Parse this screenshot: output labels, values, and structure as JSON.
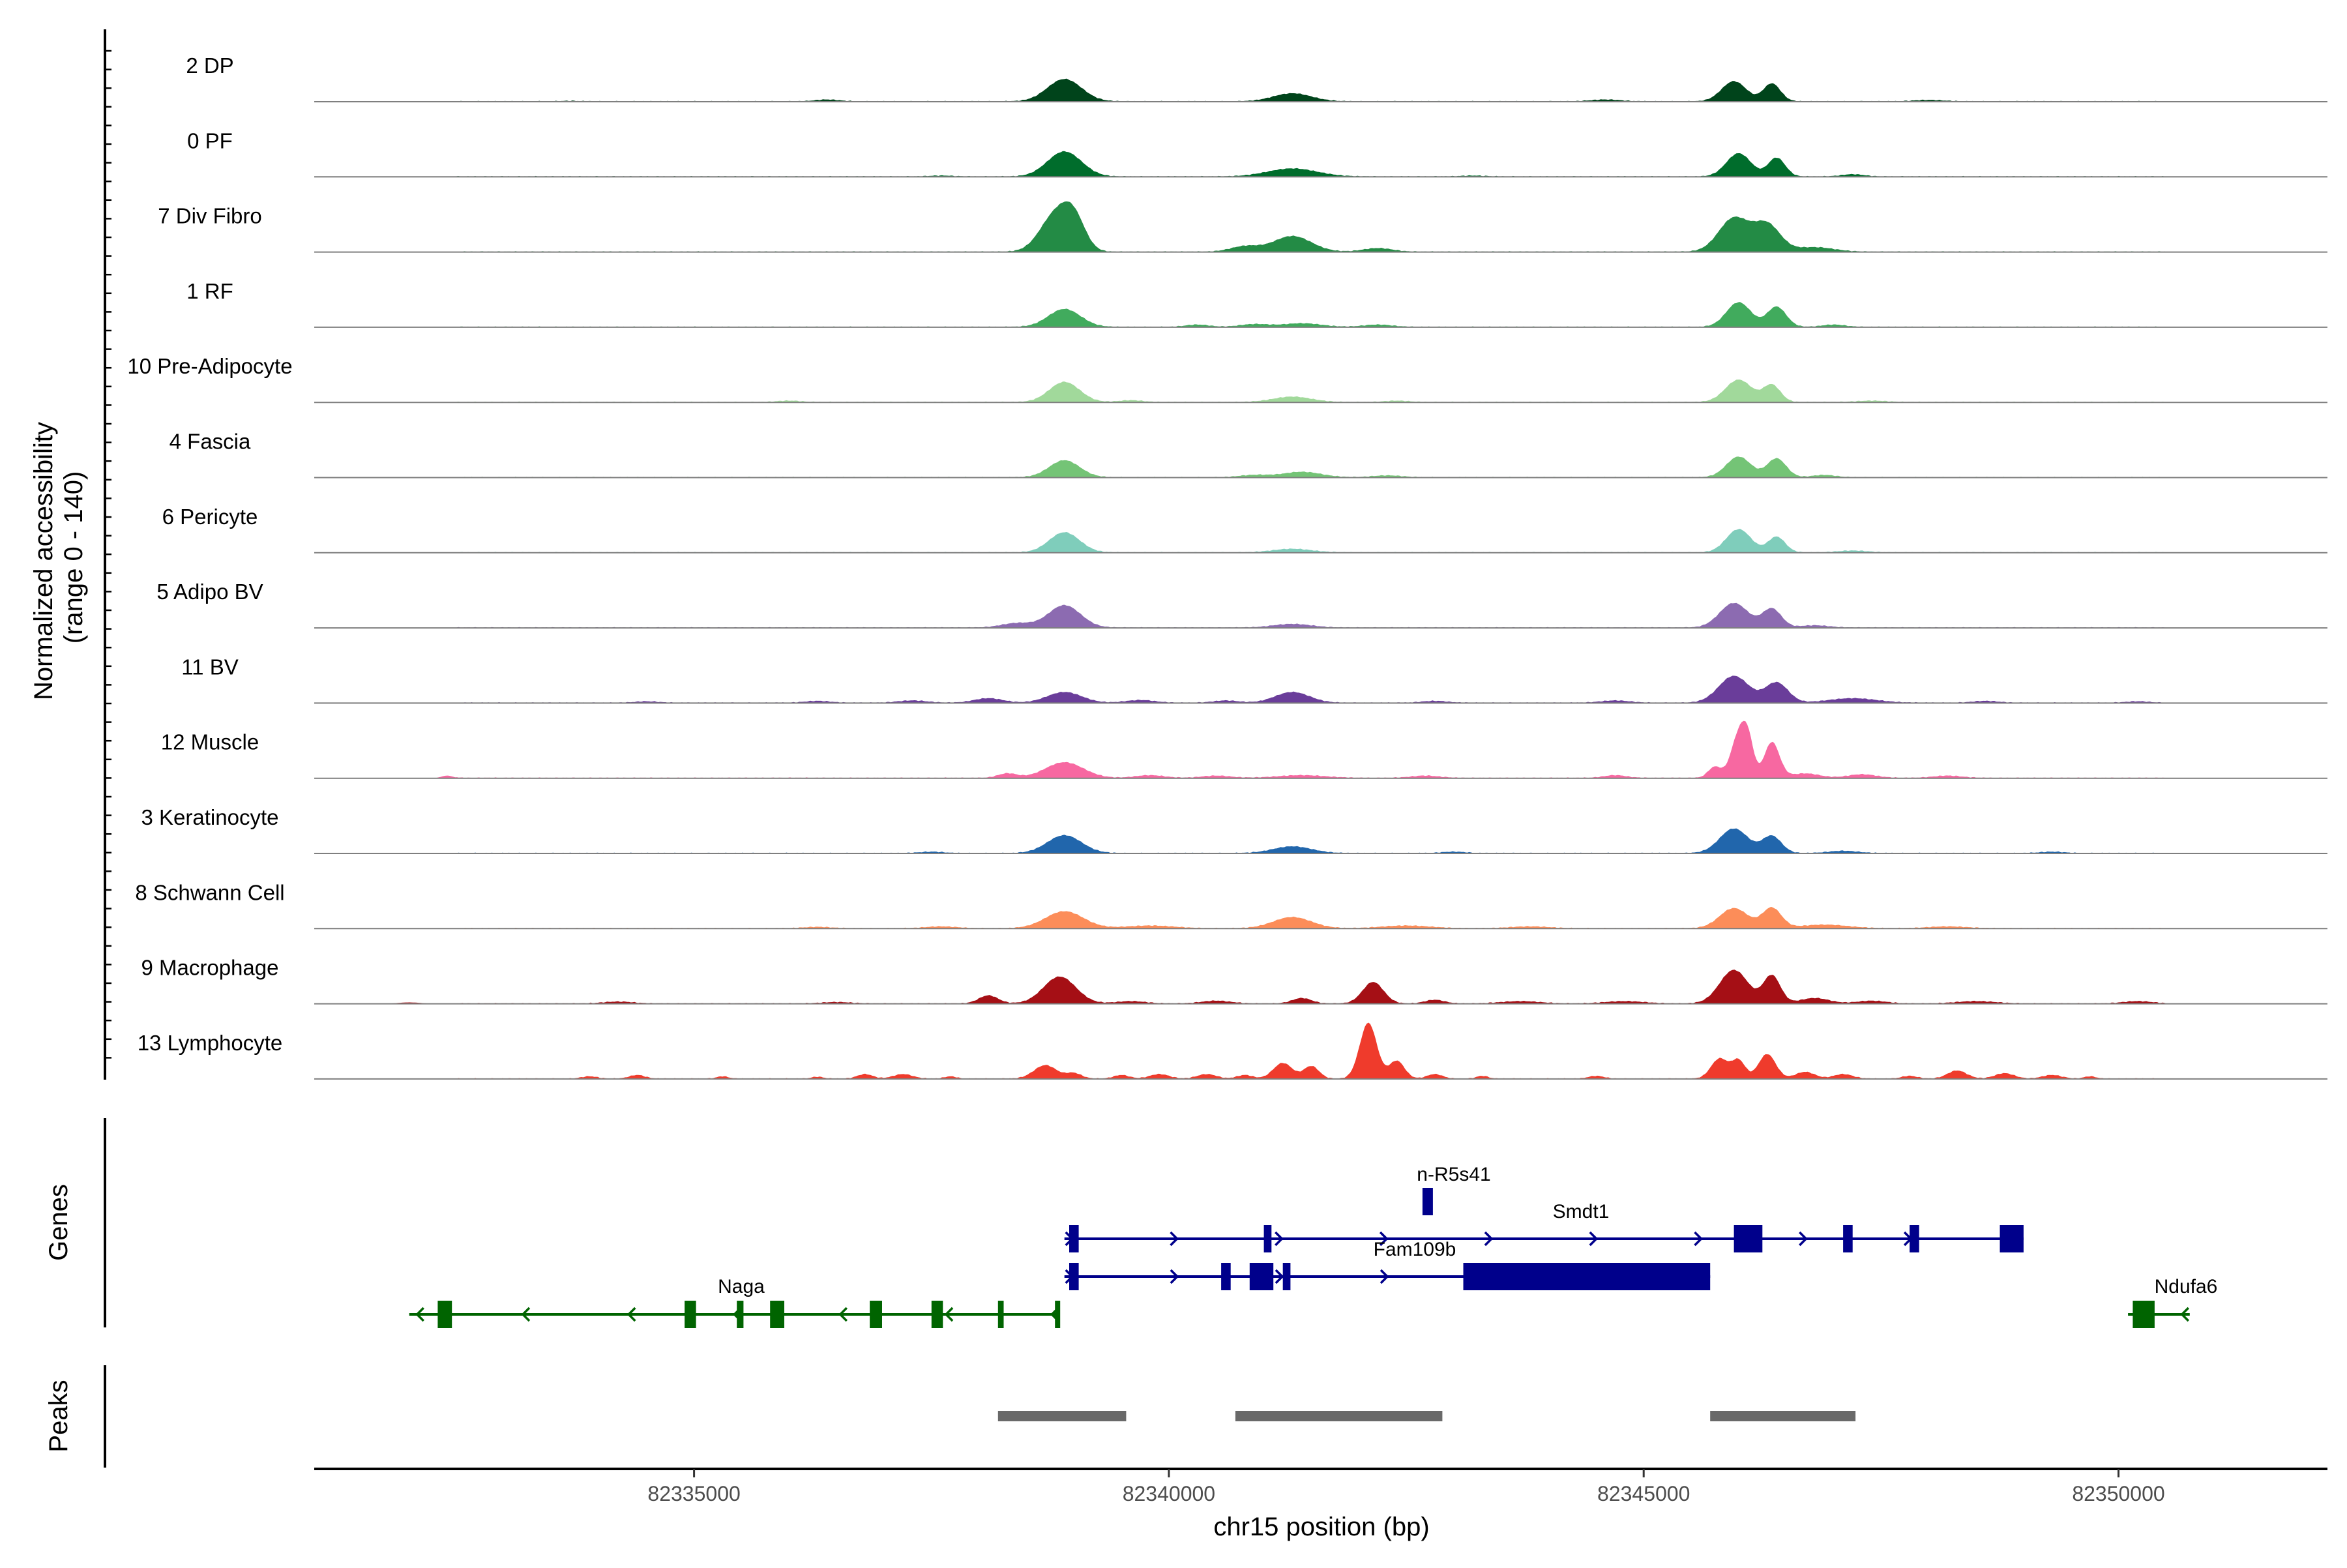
{
  "chart_data": {
    "type": "area",
    "title": "",
    "xlabel": "chr15 position (bp)",
    "ylabel": "Normalized accessibility\n(range 0 - 140)",
    "ylabel_lines": [
      "Normalized accessibility",
      "(range 0 - 140)"
    ],
    "xlim": [
      82331000,
      82352200
    ],
    "ylim": [
      0,
      140
    ],
    "x_ticks": [
      82335000,
      82340000,
      82345000,
      82350000
    ],
    "x_tick_labels": [
      "82335000",
      "82340000",
      "82345000",
      "82350000"
    ],
    "panel_labels": {
      "genes": "Genes",
      "peaks": "Peaks"
    },
    "background_level": 2,
    "series": [
      {
        "name": "2 DP",
        "color": "#00441b",
        "peaks": [
          [
            82333700,
            1,
            90
          ],
          [
            82336400,
            4,
            120
          ],
          [
            82338900,
            50,
            180
          ],
          [
            82341300,
            18,
            200
          ],
          [
            82344600,
            4,
            150
          ],
          [
            82345950,
            45,
            130
          ],
          [
            82346350,
            40,
            90
          ],
          [
            82348000,
            3,
            150
          ]
        ]
      },
      {
        "name": "0 PF",
        "color": "#006d2c",
        "peaks": [
          [
            82337600,
            2,
            120
          ],
          [
            82338900,
            56,
            180
          ],
          [
            82341300,
            18,
            260
          ],
          [
            82343200,
            2,
            120
          ],
          [
            82346000,
            52,
            130
          ],
          [
            82346400,
            42,
            90
          ],
          [
            82347200,
            5,
            120
          ]
        ]
      },
      {
        "name": "7 Div Fibro",
        "color": "#238b45",
        "peaks": [
          [
            82338800,
            80,
            160
          ],
          [
            82339000,
            65,
            120
          ],
          [
            82340800,
            12,
            150
          ],
          [
            82341300,
            35,
            200
          ],
          [
            82342200,
            8,
            150
          ],
          [
            82345950,
            75,
            160
          ],
          [
            82346300,
            60,
            140
          ],
          [
            82346800,
            10,
            200
          ]
        ]
      },
      {
        "name": "1 RF",
        "color": "#41ab5d",
        "peaks": [
          [
            82338900,
            40,
            170
          ],
          [
            82340300,
            5,
            120
          ],
          [
            82340900,
            6,
            150
          ],
          [
            82341400,
            8,
            200
          ],
          [
            82342200,
            5,
            150
          ],
          [
            82346000,
            55,
            130
          ],
          [
            82346400,
            45,
            100
          ],
          [
            82347000,
            5,
            120
          ]
        ]
      },
      {
        "name": "10 Pre-Adipocyte",
        "color": "#a1d99b",
        "peaks": [
          [
            82336000,
            3,
            120
          ],
          [
            82338900,
            45,
            160
          ],
          [
            82339600,
            4,
            120
          ],
          [
            82341300,
            12,
            200
          ],
          [
            82342400,
            3,
            120
          ],
          [
            82346000,
            50,
            140
          ],
          [
            82346350,
            38,
            90
          ],
          [
            82347400,
            3,
            150
          ]
        ]
      },
      {
        "name": "4 Fascia",
        "color": "#74c476",
        "peaks": [
          [
            82338900,
            38,
            160
          ],
          [
            82340900,
            5,
            150
          ],
          [
            82341400,
            12,
            200
          ],
          [
            82342300,
            4,
            150
          ],
          [
            82346000,
            46,
            130
          ],
          [
            82346400,
            42,
            100
          ],
          [
            82346900,
            5,
            120
          ]
        ]
      },
      {
        "name": "6 Pericyte",
        "color": "#7fcdbb",
        "peaks": [
          [
            82338900,
            45,
            160
          ],
          [
            82341300,
            8,
            200
          ],
          [
            82346000,
            52,
            130
          ],
          [
            82346400,
            35,
            90
          ],
          [
            82347200,
            4,
            150
          ]
        ]
      },
      {
        "name": "5 Adipo BV",
        "color": "#8c6bb1",
        "peaks": [
          [
            82338400,
            10,
            160
          ],
          [
            82338900,
            50,
            170
          ],
          [
            82341300,
            8,
            200
          ],
          [
            82345950,
            55,
            150
          ],
          [
            82346350,
            42,
            100
          ],
          [
            82346800,
            5,
            150
          ]
        ]
      },
      {
        "name": "11 BV",
        "color": "#6a3d9a",
        "peaks": [
          [
            82334500,
            3,
            120
          ],
          [
            82336300,
            4,
            130
          ],
          [
            82337300,
            5,
            150
          ],
          [
            82338100,
            10,
            150
          ],
          [
            82338900,
            24,
            180
          ],
          [
            82339700,
            6,
            150
          ],
          [
            82340600,
            5,
            130
          ],
          [
            82341300,
            24,
            180
          ],
          [
            82342800,
            4,
            130
          ],
          [
            82344700,
            5,
            150
          ],
          [
            82345950,
            60,
            160
          ],
          [
            82346400,
            45,
            120
          ],
          [
            82347200,
            10,
            250
          ],
          [
            82348600,
            4,
            130
          ],
          [
            82350200,
            3,
            120
          ]
        ]
      },
      {
        "name": "12 Muscle",
        "color": "#f768a1",
        "peaks": [
          [
            82332400,
            6,
            60
          ],
          [
            82338300,
            10,
            100
          ],
          [
            82338900,
            35,
            200
          ],
          [
            82339800,
            6,
            150
          ],
          [
            82340500,
            5,
            150
          ],
          [
            82341400,
            6,
            250
          ],
          [
            82342700,
            5,
            150
          ],
          [
            82344700,
            6,
            120
          ],
          [
            82345750,
            25,
            70
          ],
          [
            82346000,
            95,
            80
          ],
          [
            82346100,
            70,
            60
          ],
          [
            82346350,
            80,
            80
          ],
          [
            82346700,
            10,
            150
          ],
          [
            82347300,
            8,
            150
          ],
          [
            82348200,
            5,
            150
          ]
        ]
      },
      {
        "name": "3 Keratinocyte",
        "color": "#2166ac",
        "peaks": [
          [
            82337500,
            3,
            120
          ],
          [
            82338900,
            40,
            180
          ],
          [
            82341300,
            15,
            200
          ],
          [
            82343000,
            3,
            120
          ],
          [
            82345950,
            55,
            150
          ],
          [
            82346350,
            38,
            100
          ],
          [
            82347100,
            5,
            150
          ],
          [
            82349300,
            3,
            120
          ]
        ]
      },
      {
        "name": "8 Schwann Cell",
        "color": "#fc8d59",
        "peaks": [
          [
            82336300,
            3,
            140
          ],
          [
            82337600,
            4,
            160
          ],
          [
            82338900,
            38,
            200
          ],
          [
            82339800,
            6,
            250
          ],
          [
            82341300,
            25,
            200
          ],
          [
            82342500,
            6,
            250
          ],
          [
            82343800,
            4,
            200
          ],
          [
            82345950,
            45,
            150
          ],
          [
            82346350,
            45,
            100
          ],
          [
            82346900,
            8,
            250
          ],
          [
            82348200,
            4,
            200
          ]
        ]
      },
      {
        "name": "9 Macrophage",
        "color": "#a50f15",
        "peaks": [
          [
            82332000,
            3,
            120
          ],
          [
            82334200,
            4,
            150
          ],
          [
            82336500,
            3,
            150
          ],
          [
            82338100,
            18,
            100
          ],
          [
            82338850,
            60,
            170
          ],
          [
            82339600,
            5,
            150
          ],
          [
            82340500,
            6,
            150
          ],
          [
            82341400,
            12,
            100
          ],
          [
            82342150,
            48,
            110
          ],
          [
            82342800,
            8,
            100
          ],
          [
            82343700,
            5,
            200
          ],
          [
            82344800,
            5,
            200
          ],
          [
            82345950,
            75,
            150
          ],
          [
            82346350,
            62,
            90
          ],
          [
            82346800,
            12,
            150
          ],
          [
            82347400,
            6,
            150
          ],
          [
            82348500,
            5,
            200
          ],
          [
            82350200,
            5,
            150
          ]
        ]
      },
      {
        "name": "13 Lymphocyte",
        "color": "#ef3b2c",
        "peaks": [
          [
            82333900,
            5,
            80
          ],
          [
            82334400,
            8,
            80
          ],
          [
            82335300,
            5,
            60
          ],
          [
            82336300,
            4,
            60
          ],
          [
            82336800,
            10,
            80
          ],
          [
            82337200,
            10,
            100
          ],
          [
            82337700,
            5,
            60
          ],
          [
            82338700,
            30,
            120
          ],
          [
            82339000,
            12,
            80
          ],
          [
            82339500,
            8,
            80
          ],
          [
            82339900,
            10,
            100
          ],
          [
            82340400,
            10,
            100
          ],
          [
            82340800,
            8,
            80
          ],
          [
            82341200,
            35,
            100
          ],
          [
            82341500,
            28,
            80
          ],
          [
            82342100,
            125,
            90
          ],
          [
            82342400,
            40,
            80
          ],
          [
            82342800,
            10,
            80
          ],
          [
            82343300,
            6,
            60
          ],
          [
            82344500,
            6,
            80
          ],
          [
            82345800,
            45,
            90
          ],
          [
            82346000,
            40,
            70
          ],
          [
            82346300,
            55,
            90
          ],
          [
            82346700,
            15,
            100
          ],
          [
            82347100,
            10,
            100
          ],
          [
            82347800,
            6,
            80
          ],
          [
            82348300,
            18,
            100
          ],
          [
            82348800,
            12,
            100
          ],
          [
            82349300,
            8,
            100
          ],
          [
            82349700,
            5,
            60
          ]
        ]
      }
    ],
    "genes": [
      {
        "name": "Naga",
        "strand": "-",
        "color": "#006400",
        "row": 3,
        "start": 82332000,
        "end": 82338850,
        "exons": [
          [
            82332300,
            82332450
          ],
          [
            82334900,
            82335020
          ],
          [
            82335450,
            82335520
          ],
          [
            82335800,
            82335950
          ],
          [
            82336850,
            82336980
          ],
          [
            82337500,
            82337620
          ],
          [
            82338200,
            82338260
          ],
          [
            82338800,
            82338840
          ]
        ]
      },
      {
        "name": "Smdt1",
        "strand": "+",
        "color": "#00008b",
        "row": 1,
        "start": 82338900,
        "end": 82349000,
        "exons": [
          [
            82338950,
            82339050
          ],
          [
            82341000,
            82341080
          ],
          [
            82345950,
            82346250
          ],
          [
            82347100,
            82347200
          ],
          [
            82347800,
            82347900
          ],
          [
            82348750,
            82349000
          ]
        ]
      },
      {
        "name": "Fam109b",
        "strand": "+",
        "color": "#00008b",
        "row": 2,
        "start": 82338900,
        "end": 82345700,
        "exons": [
          [
            82338950,
            82339050
          ],
          [
            82340550,
            82340650
          ],
          [
            82340850,
            82341100
          ],
          [
            82341200,
            82341280
          ],
          [
            82343100,
            82345700
          ]
        ]
      },
      {
        "name": "n-R5s41",
        "strand": "+",
        "color": "#00008b",
        "row": 0,
        "start": 82342670,
        "end": 82342780,
        "exons": [
          [
            82342670,
            82342780
          ]
        ]
      },
      {
        "name": "Ndufa6",
        "strand": "-",
        "color": "#006400",
        "row": 3,
        "start": 82350100,
        "end": 82350750,
        "exons": [
          [
            82350150,
            82350380
          ]
        ]
      }
    ],
    "peak_regions": [
      [
        82338200,
        82339550
      ],
      [
        82340700,
        82342880
      ],
      [
        82345700,
        82347230
      ]
    ]
  }
}
